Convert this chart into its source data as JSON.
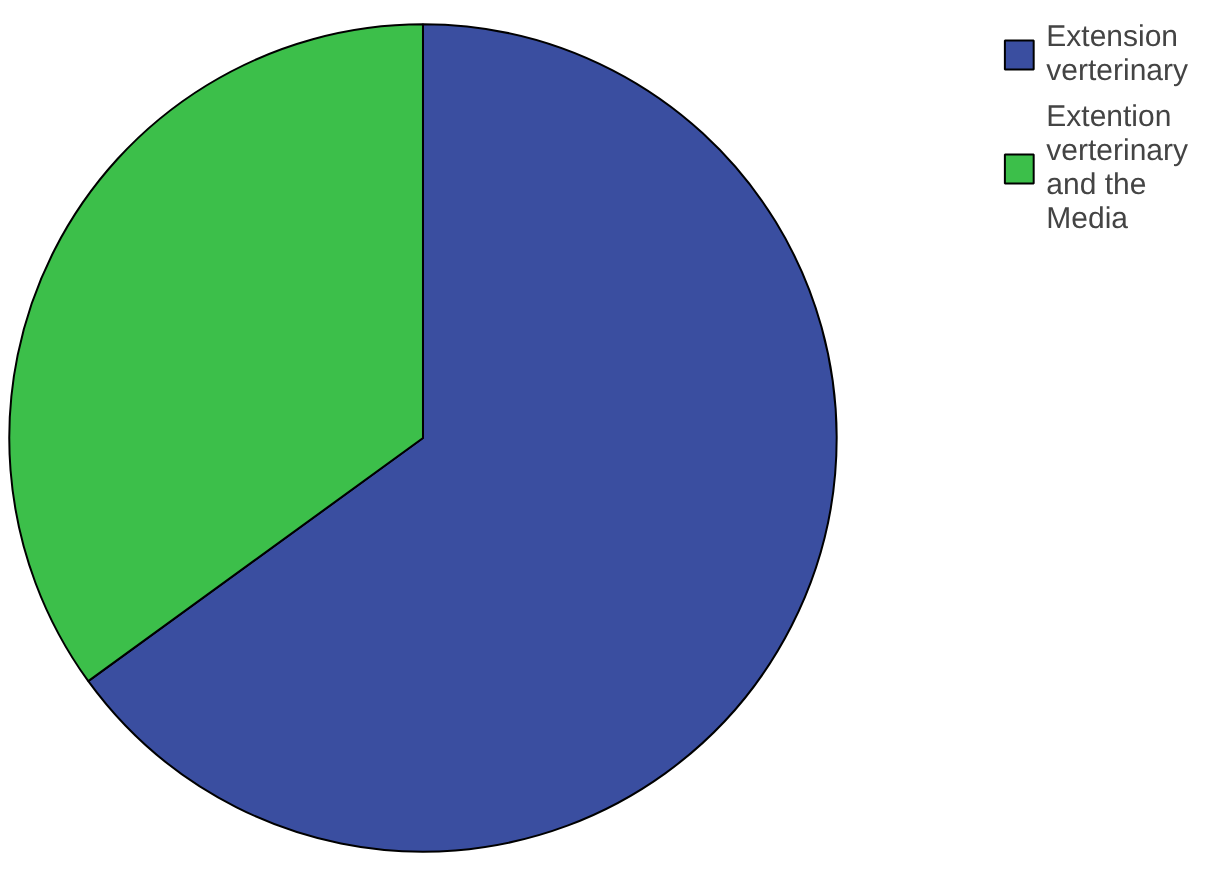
{
  "chart_data": {
    "type": "pie",
    "categories": [
      "Extension verterinary",
      "Extention verterinary and the Media"
    ],
    "values": [
      65,
      35
    ],
    "colors": [
      "#3a4ea0",
      "#3cbf4a"
    ],
    "legend": "top right"
  }
}
